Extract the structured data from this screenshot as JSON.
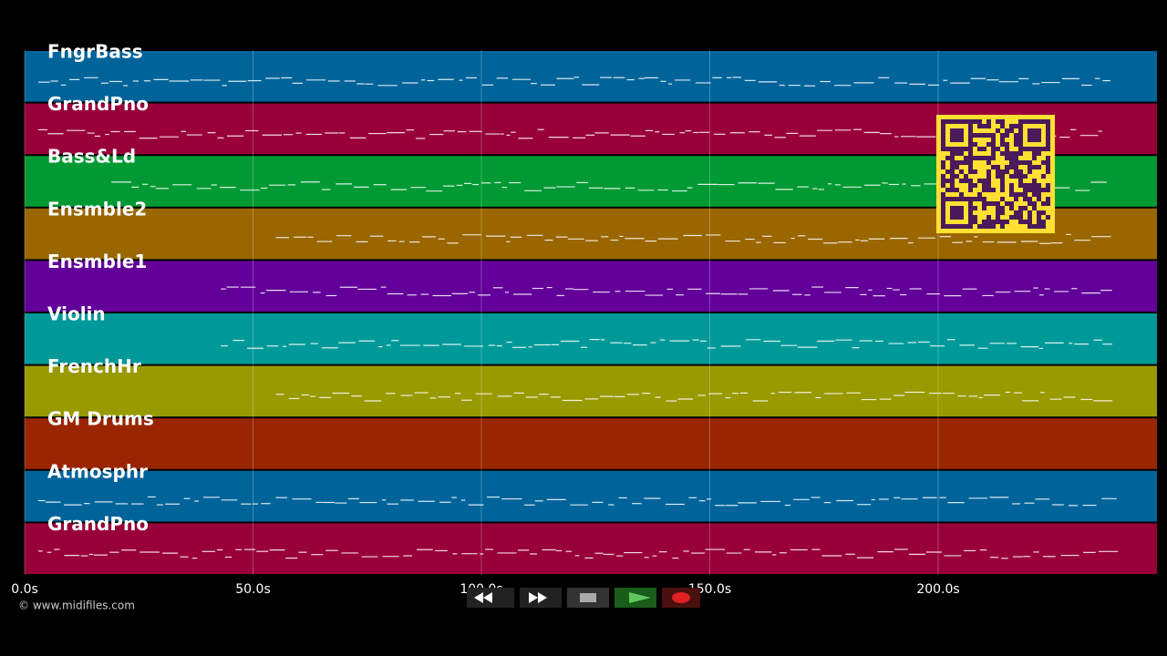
{
  "tracks": [
    {
      "name": "FngrBass",
      "color": "#00649a"
    },
    {
      "name": "GrandPno",
      "color": "#99003a"
    },
    {
      "name": "Bass&Ld",
      "color": "#009933"
    },
    {
      "name": "Ensmble2",
      "color": "#996600"
    },
    {
      "name": "Ensmble1",
      "color": "#620099"
    },
    {
      "name": "Violin",
      "color": "#009999"
    },
    {
      "name": "FrenchHr",
      "color": "#999900"
    },
    {
      "name": "GM Drums",
      "color": "#992600"
    },
    {
      "name": "Atmosphr",
      "color": "#00649a"
    },
    {
      "name": "GrandPno",
      "color": "#99003a"
    }
  ],
  "timeline": {
    "ticks": [
      {
        "value": 0,
        "label": "0.0s"
      },
      {
        "value": 50,
        "label": "50.0s"
      },
      {
        "value": 100,
        "label": "100.0s"
      },
      {
        "value": 150,
        "label": "150.0s"
      },
      {
        "value": 200,
        "label": "200.0s"
      }
    ]
  },
  "footer": {
    "copyright": "© www.midifiles.com"
  }
}
